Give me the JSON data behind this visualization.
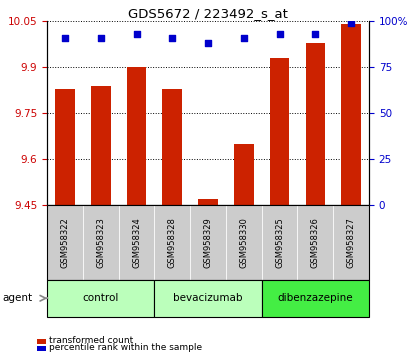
{
  "title": "GDS5672 / 223492_s_at",
  "samples": [
    "GSM958322",
    "GSM958323",
    "GSM958324",
    "GSM958328",
    "GSM958329",
    "GSM958330",
    "GSM958325",
    "GSM958326",
    "GSM958327"
  ],
  "transformed_counts": [
    9.83,
    9.84,
    9.9,
    9.83,
    9.47,
    9.65,
    9.93,
    9.98,
    10.04
  ],
  "percentile_ranks": [
    91,
    91,
    93,
    91,
    88,
    91,
    93,
    93,
    99
  ],
  "ylim_left": [
    9.45,
    10.05
  ],
  "ylim_right": [
    0,
    100
  ],
  "yticks_left": [
    9.45,
    9.6,
    9.75,
    9.9,
    10.05
  ],
  "yticks_right": [
    0,
    25,
    50,
    75,
    100
  ],
  "ytick_labels_left": [
    "9.45",
    "9.6",
    "9.75",
    "9.9",
    "10.05"
  ],
  "ytick_labels_right": [
    "0",
    "25",
    "50",
    "75",
    "100%"
  ],
  "groups": [
    {
      "label": "control",
      "indices": [
        0,
        1,
        2
      ],
      "color": "#bbffbb"
    },
    {
      "label": "bevacizumab",
      "indices": [
        3,
        4,
        5
      ],
      "color": "#bbffbb"
    },
    {
      "label": "dibenzazepine",
      "indices": [
        6,
        7,
        8
      ],
      "color": "#44ee44"
    }
  ],
  "bar_color": "#cc2200",
  "dot_color": "#0000cc",
  "bar_width": 0.55,
  "bg_color": "#ffffff",
  "tick_label_color_left": "#cc0000",
  "tick_label_color_right": "#0000cc",
  "sample_box_color": "#cccccc",
  "legend_items": [
    "transformed count",
    "percentile rank within the sample"
  ],
  "legend_colors": [
    "#cc2200",
    "#0000cc"
  ]
}
